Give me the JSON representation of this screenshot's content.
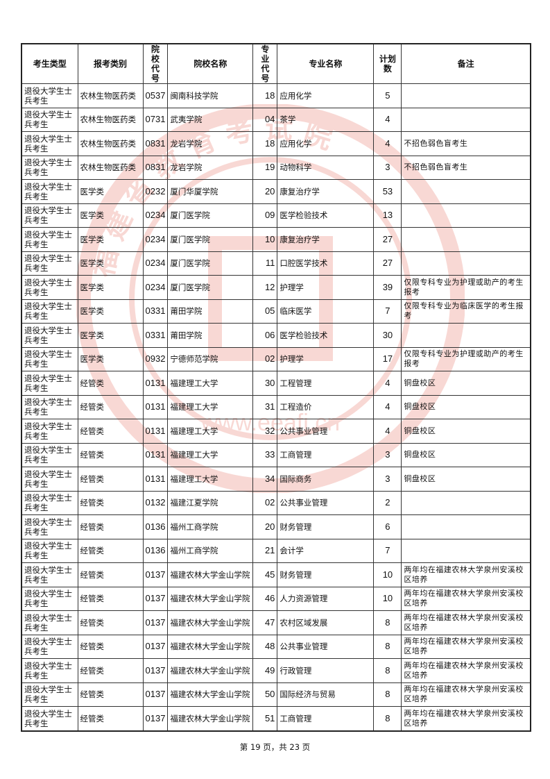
{
  "watermark": {
    "text_cn": "福建省教育考试院",
    "text_en": "FUJIAN PROVINCIAL EDUCATION EXAMINATIONS AUTHORITY",
    "url": "www.eeafj.cn",
    "color": "#e05040"
  },
  "table": {
    "headers": [
      "考生类型",
      "报考类别",
      "院校代号",
      "院校名称",
      "专业代号",
      "专业名称",
      "计划数",
      "备注"
    ],
    "rows": [
      [
        "退役大学生士兵考生",
        "农林生物医药类",
        "0537",
        "闽南科技学院",
        "18",
        "应用化学",
        "5",
        ""
      ],
      [
        "退役大学生士兵考生",
        "农林生物医药类",
        "0731",
        "武夷学院",
        "04",
        "茶学",
        "4",
        ""
      ],
      [
        "退役大学生士兵考生",
        "农林生物医药类",
        "0831",
        "龙岩学院",
        "18",
        "应用化学",
        "4",
        "不招色弱色盲考生"
      ],
      [
        "退役大学生士兵考生",
        "农林生物医药类",
        "0831",
        "龙岩学院",
        "19",
        "动物科学",
        "3",
        "不招色弱色盲考生"
      ],
      [
        "退役大学生士兵考生",
        "医学类",
        "0232",
        "厦门华厦学院",
        "20",
        "康复治疗学",
        "53",
        ""
      ],
      [
        "退役大学生士兵考生",
        "医学类",
        "0234",
        "厦门医学院",
        "09",
        "医学检验技术",
        "13",
        ""
      ],
      [
        "退役大学生士兵考生",
        "医学类",
        "0234",
        "厦门医学院",
        "10",
        "康复治疗学",
        "27",
        ""
      ],
      [
        "退役大学生士兵考生",
        "医学类",
        "0234",
        "厦门医学院",
        "11",
        "口腔医学技术",
        "27",
        ""
      ],
      [
        "退役大学生士兵考生",
        "医学类",
        "0234",
        "厦门医学院",
        "12",
        "护理学",
        "39",
        "仅限专科专业为护理或助产的考生报考"
      ],
      [
        "退役大学生士兵考生",
        "医学类",
        "0331",
        "莆田学院",
        "05",
        "临床医学",
        "7",
        "仅限专科专业为临床医学的考生报考"
      ],
      [
        "退役大学生士兵考生",
        "医学类",
        "0331",
        "莆田学院",
        "06",
        "医学检验技术",
        "30",
        ""
      ],
      [
        "退役大学生士兵考生",
        "医学类",
        "0932",
        "宁德师范学院",
        "02",
        "护理学",
        "17",
        "仅限专科专业为护理或助产的考生报考"
      ],
      [
        "退役大学生士兵考生",
        "经管类",
        "0131",
        "福建理工大学",
        "30",
        "工程管理",
        "4",
        "铜盘校区"
      ],
      [
        "退役大学生士兵考生",
        "经管类",
        "0131",
        "福建理工大学",
        "31",
        "工程造价",
        "4",
        "铜盘校区"
      ],
      [
        "退役大学生士兵考生",
        "经管类",
        "0131",
        "福建理工大学",
        "32",
        "公共事业管理",
        "4",
        "铜盘校区"
      ],
      [
        "退役大学生士兵考生",
        "经管类",
        "0131",
        "福建理工大学",
        "33",
        "工商管理",
        "3",
        "铜盘校区"
      ],
      [
        "退役大学生士兵考生",
        "经管类",
        "0131",
        "福建理工大学",
        "34",
        "国际商务",
        "3",
        "铜盘校区"
      ],
      [
        "退役大学生士兵考生",
        "经管类",
        "0132",
        "福建江夏学院",
        "02",
        "公共事业管理",
        "2",
        ""
      ],
      [
        "退役大学生士兵考生",
        "经管类",
        "0136",
        "福州工商学院",
        "20",
        "财务管理",
        "6",
        ""
      ],
      [
        "退役大学生士兵考生",
        "经管类",
        "0136",
        "福州工商学院",
        "21",
        "会计学",
        "7",
        ""
      ],
      [
        "退役大学生士兵考生",
        "经管类",
        "0137",
        "福建农林大学金山学院",
        "45",
        "财务管理",
        "10",
        "两年均在福建农林大学泉州安溪校区培养"
      ],
      [
        "退役大学生士兵考生",
        "经管类",
        "0137",
        "福建农林大学金山学院",
        "46",
        "人力资源管理",
        "10",
        "两年均在福建农林大学泉州安溪校区培养"
      ],
      [
        "退役大学生士兵考生",
        "经管类",
        "0137",
        "福建农林大学金山学院",
        "47",
        "农村区域发展",
        "8",
        "两年均在福建农林大学泉州安溪校区培养"
      ],
      [
        "退役大学生士兵考生",
        "经管类",
        "0137",
        "福建农林大学金山学院",
        "48",
        "公共事业管理",
        "8",
        "两年均在福建农林大学泉州安溪校区培养"
      ],
      [
        "退役大学生士兵考生",
        "经管类",
        "0137",
        "福建农林大学金山学院",
        "49",
        "行政管理",
        "8",
        "两年均在福建农林大学泉州安溪校区培养"
      ],
      [
        "退役大学生士兵考生",
        "经管类",
        "0137",
        "福建农林大学金山学院",
        "50",
        "国际经济与贸易",
        "8",
        "两年均在福建农林大学泉州安溪校区培养"
      ],
      [
        "退役大学生士兵考生",
        "经管类",
        "0137",
        "福建农林大学金山学院",
        "51",
        "工商管理",
        "8",
        "两年均在福建农林大学泉州安溪校区培养"
      ]
    ]
  },
  "footer": {
    "page_label": "第 19 页，共 23 页"
  }
}
